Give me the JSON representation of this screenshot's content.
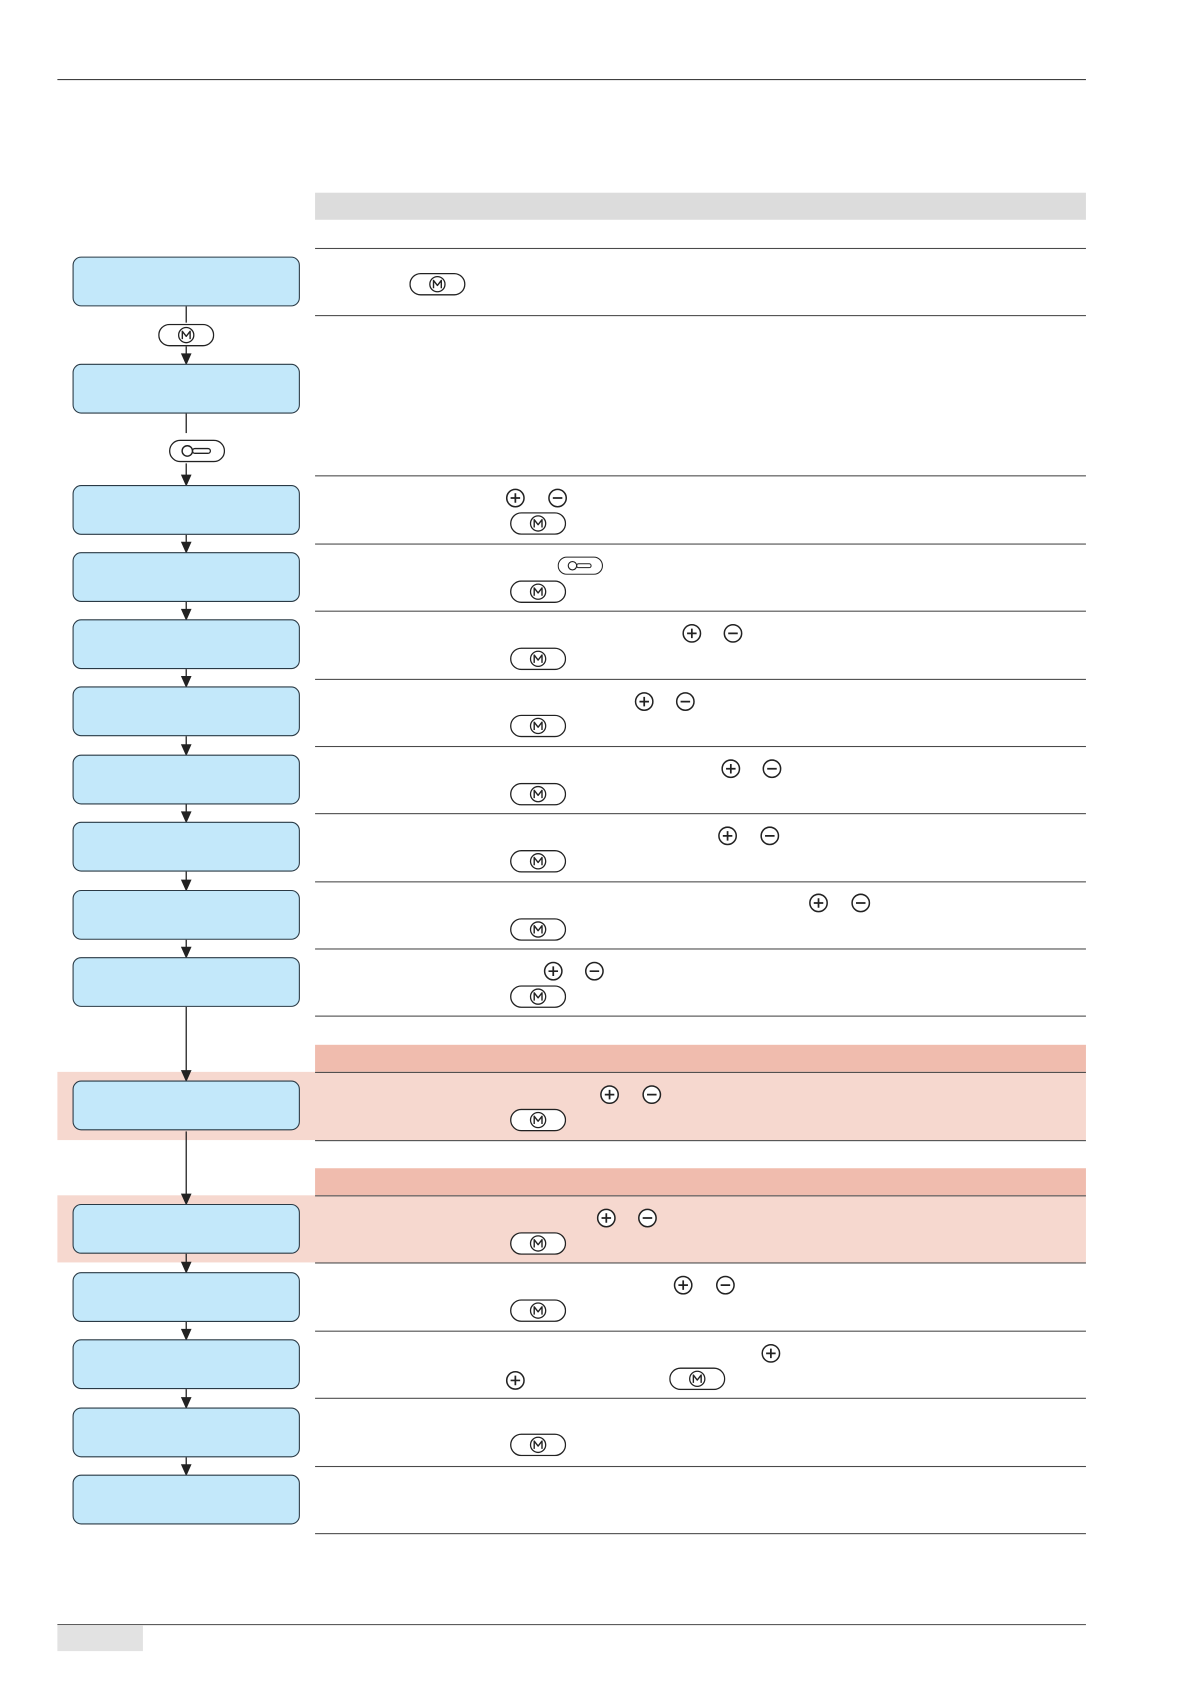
{
  "colors": {
    "flow_box_fill": "#c3e8fa",
    "flow_box_border": "#2a3a45",
    "section_band": "#dcdcdc",
    "warning_band": "#f0bcae",
    "warning_row": "#f6d8cf",
    "rule": "#4a4a4a",
    "footer_tab": "#e2e2e2"
  },
  "section_bands": [
    {
      "kind": "section",
      "color": "#dcdcdc"
    },
    {
      "kind": "warning",
      "color": "#f0bcae"
    },
    {
      "kind": "warning",
      "color": "#f0bcae"
    }
  ],
  "flow_connector_icons": [
    "mode-button-icon",
    "key-button-icon"
  ],
  "instruction_rows": [
    {
      "icons": [
        "mode-button-icon"
      ],
      "highlighted": false
    },
    {
      "icons": [],
      "highlighted": false
    },
    {
      "icons": [
        "plus-button-icon",
        "minus-button-icon",
        "mode-button-icon"
      ],
      "highlighted": false
    },
    {
      "icons": [
        "key-button-icon",
        "mode-button-icon"
      ],
      "highlighted": false
    },
    {
      "icons": [
        "plus-button-icon",
        "minus-button-icon",
        "mode-button-icon"
      ],
      "highlighted": false
    },
    {
      "icons": [
        "plus-button-icon",
        "minus-button-icon",
        "mode-button-icon"
      ],
      "highlighted": false
    },
    {
      "icons": [
        "plus-button-icon",
        "minus-button-icon",
        "mode-button-icon"
      ],
      "highlighted": false
    },
    {
      "icons": [
        "plus-button-icon",
        "minus-button-icon",
        "mode-button-icon"
      ],
      "highlighted": false
    },
    {
      "icons": [
        "plus-button-icon",
        "minus-button-icon",
        "mode-button-icon"
      ],
      "highlighted": false
    },
    {
      "icons": [
        "plus-button-icon",
        "minus-button-icon",
        "mode-button-icon"
      ],
      "highlighted": false
    },
    {
      "icons": [
        "plus-button-icon",
        "minus-button-icon",
        "mode-button-icon"
      ],
      "highlighted": true
    },
    {
      "icons": [
        "plus-button-icon",
        "minus-button-icon",
        "mode-button-icon"
      ],
      "highlighted": true
    },
    {
      "icons": [
        "plus-button-icon",
        "minus-button-icon",
        "mode-button-icon"
      ],
      "highlighted": false
    },
    {
      "icons": [
        "plus-button-icon",
        "plus-button-icon",
        "mode-button-icon"
      ],
      "highlighted": false
    },
    {
      "icons": [
        "mode-button-icon"
      ],
      "highlighted": false
    },
    {
      "icons": [],
      "highlighted": false
    }
  ]
}
